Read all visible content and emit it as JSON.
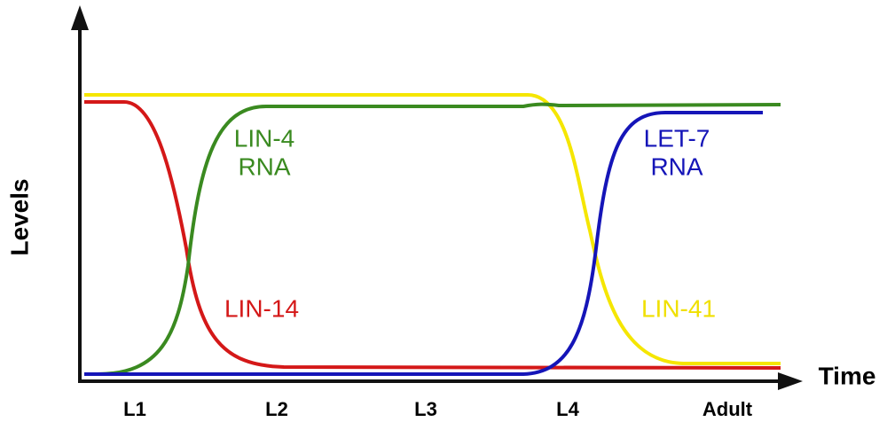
{
  "axes": {
    "y_label": "Levels",
    "x_label": "Time"
  },
  "stages": [
    "L1",
    "L2",
    "L3",
    "L4",
    "Adult"
  ],
  "curves": [
    {
      "lines": [
        "LIN-4",
        "RNA"
      ]
    },
    {
      "lines": [
        "LIN-14"
      ]
    },
    {
      "lines": [
        "LET-7",
        "RNA"
      ]
    },
    {
      "lines": [
        "LIN-41"
      ]
    }
  ]
}
